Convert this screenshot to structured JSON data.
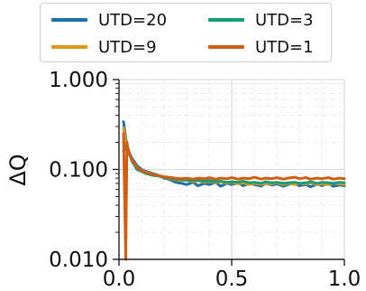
{
  "chart_data": {
    "type": "line",
    "title": "",
    "xlabel": "",
    "ylabel": "ΔQ",
    "xlim": [
      0.0,
      1.0
    ],
    "ylim": [
      0.01,
      1.0
    ],
    "yscale": "log",
    "xticks": [
      "0.0",
      "0.5",
      "1.0"
    ],
    "yticks": [
      "0.010",
      "0.100",
      "1.000"
    ],
    "grid": true,
    "legend_position": "top",
    "series": [
      {
        "name": "UTD=20",
        "color": "#1f6fa8",
        "x": [
          0.02,
          0.03,
          0.04,
          0.05,
          0.06,
          0.07,
          0.08,
          0.1,
          0.12,
          0.15,
          0.18,
          0.2,
          0.22,
          0.25,
          0.28,
          0.3,
          0.33,
          0.35,
          0.38,
          0.4,
          0.43,
          0.45,
          0.48,
          0.5,
          0.53,
          0.55,
          0.58,
          0.6,
          0.63,
          0.65,
          0.68,
          0.7,
          0.73,
          0.75,
          0.78,
          0.8,
          0.83,
          0.85,
          0.88,
          0.9,
          0.93,
          0.95,
          0.98,
          1.0
        ],
        "y": [
          0.34,
          0.22,
          0.17,
          0.145,
          0.13,
          0.12,
          0.11,
          0.1,
          0.095,
          0.09,
          0.085,
          0.08,
          0.078,
          0.072,
          0.07,
          0.068,
          0.072,
          0.066,
          0.07,
          0.068,
          0.072,
          0.065,
          0.07,
          0.068,
          0.071,
          0.066,
          0.07,
          0.068,
          0.065,
          0.07,
          0.067,
          0.069,
          0.065,
          0.068,
          0.07,
          0.066,
          0.068,
          0.064,
          0.069,
          0.066,
          0.07,
          0.065,
          0.067,
          0.066
        ]
      },
      {
        "name": "UTD=9",
        "color": "#e0961a",
        "x": [
          0.02,
          0.03,
          0.04,
          0.05,
          0.06,
          0.07,
          0.08,
          0.1,
          0.12,
          0.15,
          0.18,
          0.2,
          0.22,
          0.25,
          0.28,
          0.3,
          0.33,
          0.35,
          0.38,
          0.4,
          0.43,
          0.45,
          0.48,
          0.5,
          0.53,
          0.55,
          0.58,
          0.6,
          0.63,
          0.65,
          0.68,
          0.7,
          0.73,
          0.75,
          0.78,
          0.8,
          0.83,
          0.85,
          0.88,
          0.9,
          0.93,
          0.95,
          0.98,
          1.0
        ],
        "y": [
          0.29,
          0.2,
          0.16,
          0.14,
          0.125,
          0.115,
          0.105,
          0.098,
          0.093,
          0.088,
          0.084,
          0.082,
          0.079,
          0.077,
          0.075,
          0.076,
          0.073,
          0.075,
          0.072,
          0.074,
          0.071,
          0.073,
          0.07,
          0.072,
          0.069,
          0.071,
          0.068,
          0.07,
          0.068,
          0.07,
          0.069,
          0.071,
          0.068,
          0.07,
          0.068,
          0.07,
          0.069,
          0.071,
          0.068,
          0.069,
          0.068,
          0.07,
          0.069,
          0.068
        ]
      },
      {
        "name": "UTD=3",
        "color": "#179c73",
        "x": [
          0.02,
          0.03,
          0.04,
          0.05,
          0.06,
          0.07,
          0.08,
          0.1,
          0.12,
          0.15,
          0.18,
          0.2,
          0.22,
          0.25,
          0.28,
          0.3,
          0.33,
          0.35,
          0.38,
          0.4,
          0.43,
          0.45,
          0.48,
          0.5,
          0.53,
          0.55,
          0.58,
          0.6,
          0.63,
          0.65,
          0.68,
          0.7,
          0.73,
          0.75,
          0.78,
          0.8,
          0.83,
          0.85,
          0.88,
          0.9,
          0.93,
          0.95,
          0.98,
          1.0
        ],
        "y": [
          0.16,
          0.18,
          0.16,
          0.14,
          0.12,
          0.11,
          0.1,
          0.095,
          0.09,
          0.086,
          0.084,
          0.082,
          0.08,
          0.078,
          0.077,
          0.076,
          0.075,
          0.076,
          0.074,
          0.075,
          0.073,
          0.074,
          0.072,
          0.073,
          0.072,
          0.074,
          0.071,
          0.072,
          0.07,
          0.073,
          0.071,
          0.072,
          0.07,
          0.071,
          0.072,
          0.07,
          0.071,
          0.073,
          0.07,
          0.072,
          0.071,
          0.07,
          0.072,
          0.071
        ]
      },
      {
        "name": "UTD=1",
        "color": "#cf5e12",
        "x": [
          0.02,
          0.03,
          0.035,
          0.04,
          0.05,
          0.06,
          0.07,
          0.08,
          0.1,
          0.12,
          0.15,
          0.18,
          0.2,
          0.22,
          0.25,
          0.28,
          0.3,
          0.33,
          0.35,
          0.38,
          0.4,
          0.43,
          0.45,
          0.48,
          0.5,
          0.53,
          0.55,
          0.58,
          0.6,
          0.63,
          0.65,
          0.68,
          0.7,
          0.73,
          0.75,
          0.78,
          0.8,
          0.83,
          0.85,
          0.88,
          0.9,
          0.93,
          0.95,
          0.98,
          1.0
        ],
        "y": [
          0.25,
          0.01,
          0.2,
          0.17,
          0.14,
          0.125,
          0.115,
          0.105,
          0.097,
          0.092,
          0.088,
          0.085,
          0.083,
          0.082,
          0.08,
          0.079,
          0.08,
          0.078,
          0.08,
          0.079,
          0.081,
          0.078,
          0.08,
          0.079,
          0.081,
          0.078,
          0.08,
          0.079,
          0.082,
          0.078,
          0.08,
          0.079,
          0.081,
          0.078,
          0.08,
          0.082,
          0.079,
          0.081,
          0.078,
          0.08,
          0.079,
          0.081,
          0.078,
          0.08,
          0.079
        ]
      }
    ]
  }
}
